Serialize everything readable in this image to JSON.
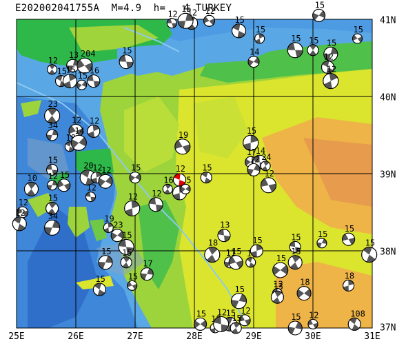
{
  "header": {
    "title": "E202002041755A  M=4.9  h=   4 TURKEY"
  },
  "axes": {
    "x_labels": [
      "25E",
      "26E",
      "27E",
      "28E",
      "29E",
      "30E",
      "31E"
    ],
    "y_labels": [
      "41N",
      "40N",
      "39N",
      "38N",
      "37N"
    ]
  },
  "event": {
    "label": "12",
    "color": "#e00000"
  },
  "mechanisms": [
    {
      "lon": 27.62,
      "lat": 40.95,
      "label": "12"
    },
    {
      "lon": 27.95,
      "lat": 40.95,
      "label": "12"
    },
    {
      "lon": 27.85,
      "lat": 40.98,
      "label": "15"
    },
    {
      "lon": 28.25,
      "lat": 40.98,
      "label": "12"
    },
    {
      "lon": 28.75,
      "lat": 40.85,
      "label": "15"
    },
    {
      "lon": 29.1,
      "lat": 40.75,
      "label": "15"
    },
    {
      "lon": 30.1,
      "lat": 41.05,
      "label": "15"
    },
    {
      "lon": 29.7,
      "lat": 40.6,
      "label": "15"
    },
    {
      "lon": 30.0,
      "lat": 40.6,
      "label": "15"
    },
    {
      "lon": 30.3,
      "lat": 40.55,
      "label": "15"
    },
    {
      "lon": 30.75,
      "lat": 40.75,
      "label": "15"
    },
    {
      "lon": 30.25,
      "lat": 40.38,
      "label": "12"
    },
    {
      "lon": 30.3,
      "lat": 40.2,
      "label": "12"
    },
    {
      "lon": 29.0,
      "lat": 40.45,
      "label": "14"
    },
    {
      "lon": 26.85,
      "lat": 40.45,
      "label": "15"
    },
    {
      "lon": 25.6,
      "lat": 40.35,
      "label": "12"
    },
    {
      "lon": 25.95,
      "lat": 40.4,
      "label": "13"
    },
    {
      "lon": 26.15,
      "lat": 40.4,
      "label": "204"
    },
    {
      "lon": 25.75,
      "lat": 40.2,
      "label": "15"
    },
    {
      "lon": 25.9,
      "lat": 40.2,
      "label": "15"
    },
    {
      "lon": 26.1,
      "lat": 40.15,
      "label": "15"
    },
    {
      "lon": 26.3,
      "lat": 40.2,
      "label": "16"
    },
    {
      "lon": 25.6,
      "lat": 39.75,
      "label": "23"
    },
    {
      "lon": 25.6,
      "lat": 39.5,
      "label": "34"
    },
    {
      "lon": 26.0,
      "lat": 39.55,
      "label": "12"
    },
    {
      "lon": 25.9,
      "lat": 39.35,
      "label": "18"
    },
    {
      "lon": 26.3,
      "lat": 39.55,
      "label": "12"
    },
    {
      "lon": 26.05,
      "lat": 39.4,
      "label": "14"
    },
    {
      "lon": 25.6,
      "lat": 39.05,
      "label": "15"
    },
    {
      "lon": 25.25,
      "lat": 38.8,
      "label": "10"
    },
    {
      "lon": 25.6,
      "lat": 38.85,
      "label": "12"
    },
    {
      "lon": 25.8,
      "lat": 38.85,
      "label": "15"
    },
    {
      "lon": 26.2,
      "lat": 38.95,
      "label": "20"
    },
    {
      "lon": 26.35,
      "lat": 38.95,
      "label": "12"
    },
    {
      "lon": 26.5,
      "lat": 38.9,
      "label": "12"
    },
    {
      "lon": 26.25,
      "lat": 38.7,
      "label": "12"
    },
    {
      "lon": 25.6,
      "lat": 38.55,
      "label": "15"
    },
    {
      "lon": 25.6,
      "lat": 38.3,
      "label": "34"
    },
    {
      "lon": 25.1,
      "lat": 38.5,
      "label": "12"
    },
    {
      "lon": 25.05,
      "lat": 38.35,
      "label": "12"
    },
    {
      "lon": 26.55,
      "lat": 38.3,
      "label": "19"
    },
    {
      "lon": 26.7,
      "lat": 38.2,
      "label": "23"
    },
    {
      "lon": 26.85,
      "lat": 38.05,
      "label": "15"
    },
    {
      "lon": 26.85,
      "lat": 37.85,
      "label": "15"
    },
    {
      "lon": 26.5,
      "lat": 37.85,
      "label": "15"
    },
    {
      "lon": 26.95,
      "lat": 37.55,
      "label": "15"
    },
    {
      "lon": 26.4,
      "lat": 37.5,
      "label": "15"
    },
    {
      "lon": 26.95,
      "lat": 38.55,
      "label": "12"
    },
    {
      "lon": 27.0,
      "lat": 38.95,
      "label": "15"
    },
    {
      "lon": 27.35,
      "lat": 38.6,
      "label": "12"
    },
    {
      "lon": 27.55,
      "lat": 38.8,
      "label": "16"
    },
    {
      "lon": 27.2,
      "lat": 37.7,
      "label": "17"
    },
    {
      "lon": 27.8,
      "lat": 39.35,
      "label": "19"
    },
    {
      "lon": 28.2,
      "lat": 38.95,
      "label": "15"
    },
    {
      "lon": 27.75,
      "lat": 38.75,
      "label": "16"
    },
    {
      "lon": 27.85,
      "lat": 38.8,
      "label": "15"
    },
    {
      "lon": 28.5,
      "lat": 38.2,
      "label": "13"
    },
    {
      "lon": 28.3,
      "lat": 37.95,
      "label": "18"
    },
    {
      "lon": 28.6,
      "lat": 37.85,
      "label": "11"
    },
    {
      "lon": 28.7,
      "lat": 37.85,
      "label": "15"
    },
    {
      "lon": 28.95,
      "lat": 37.85,
      "label": "16"
    },
    {
      "lon": 29.05,
      "lat": 38.0,
      "label": "15"
    },
    {
      "lon": 29.45,
      "lat": 37.75,
      "label": "15"
    },
    {
      "lon": 29.7,
      "lat": 38.05,
      "label": "15"
    },
    {
      "lon": 29.7,
      "lat": 37.85,
      "label": "15"
    },
    {
      "lon": 30.15,
      "lat": 38.1,
      "label": "15"
    },
    {
      "lon": 30.6,
      "lat": 38.15,
      "label": "15"
    },
    {
      "lon": 30.95,
      "lat": 37.95,
      "label": "15"
    },
    {
      "lon": 30.6,
      "lat": 37.55,
      "label": "18"
    },
    {
      "lon": 29.85,
      "lat": 37.45,
      "label": "18"
    },
    {
      "lon": 29.4,
      "lat": 37.45,
      "label": "12"
    },
    {
      "lon": 29.4,
      "lat": 37.4,
      "label": "13"
    },
    {
      "lon": 28.75,
      "lat": 37.35,
      "label": "15"
    },
    {
      "lon": 28.85,
      "lat": 37.1,
      "label": "12"
    },
    {
      "lon": 28.6,
      "lat": 37.05,
      "label": "15"
    },
    {
      "lon": 28.35,
      "lat": 37.0,
      "label": "15"
    },
    {
      "lon": 28.1,
      "lat": 37.05,
      "label": "15"
    },
    {
      "lon": 28.45,
      "lat": 37.05,
      "label": "12"
    },
    {
      "lon": 28.7,
      "lat": 37.0,
      "label": "15"
    },
    {
      "lon": 29.7,
      "lat": 37.0,
      "label": "15"
    },
    {
      "lon": 30.0,
      "lat": 37.05,
      "label": "12"
    },
    {
      "lon": 30.7,
      "lat": 37.05,
      "label": "108"
    },
    {
      "lon": 28.95,
      "lat": 39.4,
      "label": "15"
    },
    {
      "lon": 28.95,
      "lat": 39.15,
      "label": "17"
    },
    {
      "lon": 29.1,
      "lat": 39.15,
      "label": "14"
    },
    {
      "lon": 29.2,
      "lat": 39.1,
      "label": "24"
    },
    {
      "lon": 29.0,
      "lat": 39.05,
      "label": "12"
    },
    {
      "lon": 29.25,
      "lat": 38.85,
      "label": "12"
    }
  ]
}
